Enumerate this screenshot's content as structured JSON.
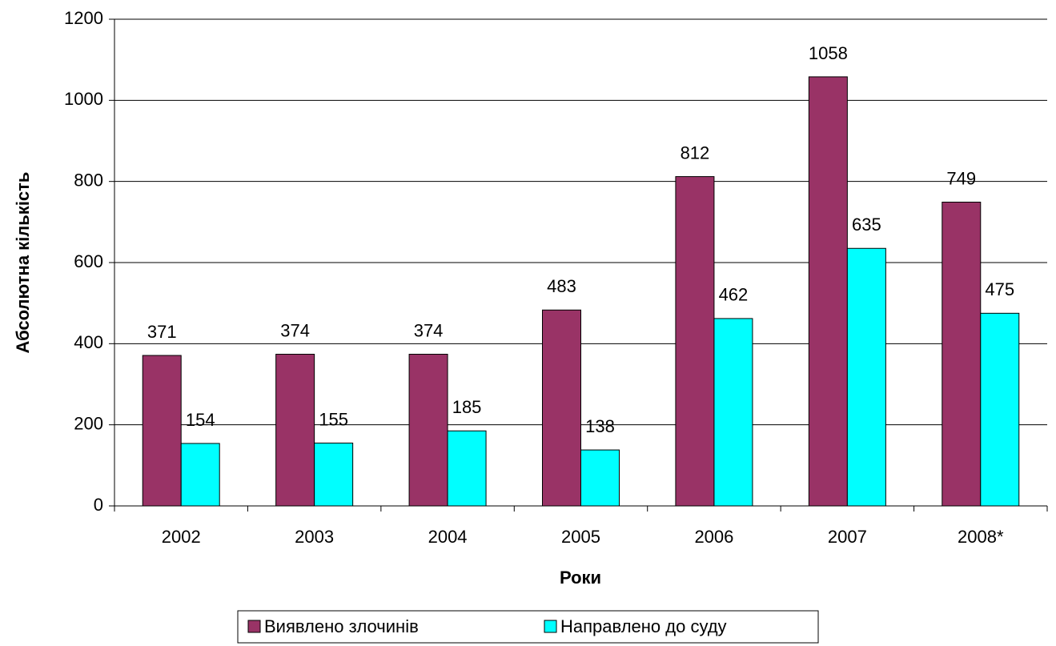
{
  "chart_data": {
    "type": "bar",
    "categories": [
      "2002",
      "2003",
      "2004",
      "2005",
      "2006",
      "2007",
      "2008*"
    ],
    "series": [
      {
        "name": "Виявлено злочинів",
        "color": "#993366",
        "values": [
          371,
          374,
          374,
          483,
          812,
          1058,
          749
        ]
      },
      {
        "name": "Направлено до суду",
        "color": "#00ffff",
        "values": [
          154,
          155,
          185,
          138,
          462,
          635,
          475
        ]
      }
    ],
    "x_label": "Роки",
    "y_label": "Абсолютна кількість",
    "ylim": [
      0,
      1200
    ],
    "yticks": [
      0,
      200,
      400,
      600,
      800,
      1000,
      1200
    ],
    "grid": true,
    "legend": "bottom"
  }
}
